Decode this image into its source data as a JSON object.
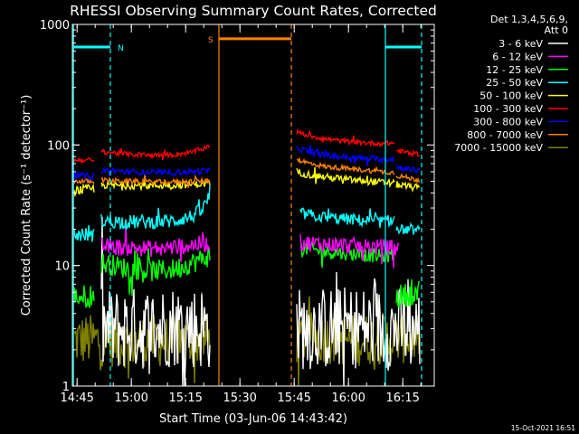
{
  "chart_data": {
    "type": "line",
    "title": "RHESSI Observing Summary Count Rates, Corrected",
    "xlabel": "Start Time (03-Jun-06 14:43:42)",
    "ylabel": "Corrected Count Rate (s⁻¹ detector⁻¹)",
    "x_unit": "minutes since 14:43:42",
    "xlim": [
      0,
      100
    ],
    "ylim": [
      1,
      1000
    ],
    "yscale": "log",
    "xticks": [
      {
        "x": 1.3,
        "label": "14:45"
      },
      {
        "x": 16.3,
        "label": "15:00"
      },
      {
        "x": 31.3,
        "label": "15:15"
      },
      {
        "x": 46.3,
        "label": "15:30"
      },
      {
        "x": 61.3,
        "label": "15:45"
      },
      {
        "x": 76.3,
        "label": "16:00"
      },
      {
        "x": 91.3,
        "label": "16:15"
      }
    ],
    "yticks": [
      {
        "y": 1,
        "label": "1"
      },
      {
        "y": 10,
        "label": "10"
      },
      {
        "y": 100,
        "label": "100"
      },
      {
        "y": 1000,
        "label": "1000"
      }
    ],
    "legend": {
      "title_lines": [
        "Det 1,3,4,5,6,9,",
        "Att 0"
      ],
      "placement": "right"
    },
    "markers": [
      {
        "label": "N",
        "color": "#00ffff",
        "x1": 0.3,
        "x2": 10.5,
        "bar_y": 650,
        "lines": [
          0.3,
          10.5
        ],
        "dash": [
          false,
          true
        ]
      },
      {
        "label": "S",
        "color": "#ff8000",
        "x1": 40.5,
        "x2": 60.5,
        "bar_y": 760,
        "lines": [
          40.5,
          60.5
        ],
        "dash": [
          false,
          true
        ]
      },
      {
        "label": "",
        "color": "#00ffff",
        "x1": 86.5,
        "x2": 96.5,
        "bar_y": 650,
        "lines": [
          86.5,
          96.5
        ],
        "dash": [
          false,
          true
        ]
      }
    ],
    "series": [
      {
        "name": "3 - 6 keV",
        "color": "#ffffff",
        "segments": [
          {
            "x": [
              8,
              15,
              22,
              28,
              33,
              38
            ],
            "y": [
              2.9,
              3.0,
              3.0,
              3.2,
              3.1,
              3.0
            ],
            "noise": 0.35
          },
          {
            "x": [
              62,
              70,
              78,
              85,
              90,
              96
            ],
            "y": [
              3.0,
              3.0,
              3.1,
              3.0,
              3.0,
              3.0
            ],
            "noise": 0.35
          }
        ]
      },
      {
        "name": "6 - 12 keV",
        "color": "#ff00ff",
        "segments": [
          {
            "x": [
              8,
              15,
              22,
              28,
              33,
              38
            ],
            "y": [
              14.5,
              14.0,
              13.8,
              14.2,
              14.8,
              15.3
            ],
            "noise": 0.07
          },
          {
            "x": [
              63,
              70,
              78,
              85,
              90
            ],
            "y": [
              15.5,
              15.0,
              14.5,
              14.2,
              14.0
            ],
            "noise": 0.07
          }
        ]
      },
      {
        "name": "12 - 25 keV",
        "color": "#00ff00",
        "segments": [
          {
            "x": [
              0.5,
              6
            ],
            "y": [
              5.5,
              5.6
            ],
            "noise": 0.1
          },
          {
            "x": [
              8,
              15,
              22,
              28,
              33,
              38
            ],
            "y": [
              10.5,
              9.5,
              9.0,
              9.3,
              10.5,
              12.0
            ],
            "noise": 0.09
          },
          {
            "x": [
              63,
              70,
              78,
              85,
              89
            ],
            "y": [
              14.0,
              13.0,
              12.5,
              12.0,
              12.2
            ],
            "noise": 0.06
          },
          {
            "x": [
              89.5,
              96
            ],
            "y": [
              5.5,
              6.0
            ],
            "noise": 0.1
          }
        ]
      },
      {
        "name": "25 - 50 keV",
        "color": "#00ffff",
        "segments": [
          {
            "x": [
              0.5,
              6
            ],
            "y": [
              18.0,
              18.0
            ],
            "noise": 0.06
          },
          {
            "x": [
              8,
              15,
              22,
              28,
              33,
              36,
              38
            ],
            "y": [
              23.5,
              23.0,
              23.0,
              23.5,
              25.5,
              29.0,
              38.0
            ],
            "noise": 0.06
          },
          {
            "x": [
              63,
              70,
              78,
              85,
              89
            ],
            "y": [
              27.0,
              25.0,
              24.0,
              23.0,
              24.0
            ],
            "noise": 0.05
          },
          {
            "x": [
              89.5,
              96
            ],
            "y": [
              20.0,
              19.5
            ],
            "noise": 0.04
          }
        ]
      },
      {
        "name": "50 - 100 keV",
        "color": "#ffff00",
        "segments": [
          {
            "x": [
              0.5,
              6
            ],
            "y": [
              42.0,
              43.0
            ],
            "noise": 0.04
          },
          {
            "x": [
              8,
              15,
              22,
              28,
              33,
              38
            ],
            "y": [
              46.5,
              46.0,
              46.0,
              46.5,
              47.0,
              48.0
            ],
            "noise": 0.03
          },
          {
            "x": [
              62,
              65,
              70,
              78,
              85,
              89
            ],
            "y": [
              60.0,
              57.0,
              54.0,
              51.0,
              49.0,
              48.0
            ],
            "noise": 0.03
          },
          {
            "x": [
              89.5,
              93,
              96
            ],
            "y": [
              47.0,
              45.0,
              44.0
            ],
            "noise": 0.03
          }
        ]
      },
      {
        "name": "100 - 300 keV",
        "color": "#ff0000",
        "segments": [
          {
            "x": [
              0.5,
              6
            ],
            "y": [
              75.0,
              75.0
            ],
            "noise": 0.02
          },
          {
            "x": [
              8,
              15,
              22,
              28,
              33,
              36,
              38
            ],
            "y": [
              88.0,
              84.0,
              82.0,
              83.0,
              87.0,
              93.0,
              100.0
            ],
            "noise": 0.02
          },
          {
            "x": [
              62,
              65,
              70,
              78,
              85,
              89
            ],
            "y": [
              128.0,
              120.0,
              112.0,
              105.0,
              103.0,
              104.0
            ],
            "noise": 0.02
          },
          {
            "x": [
              89.5,
              93,
              96
            ],
            "y": [
              90.0,
              86.0,
              84.0
            ],
            "noise": 0.02
          }
        ]
      },
      {
        "name": "300 - 800 keV",
        "color": "#0000ff",
        "segments": [
          {
            "x": [
              0.5,
              6
            ],
            "y": [
              56.0,
              55.0
            ],
            "noise": 0.025
          },
          {
            "x": [
              8,
              15,
              22,
              28,
              33,
              38
            ],
            "y": [
              62.0,
              60.0,
              59.0,
              59.0,
              60.0,
              61.0
            ],
            "noise": 0.025
          },
          {
            "x": [
              62,
              65,
              70,
              78,
              85,
              89
            ],
            "y": [
              95.0,
              88.0,
              82.0,
              78.0,
              76.0,
              77.0
            ],
            "noise": 0.025
          },
          {
            "x": [
              89.5,
              93,
              96
            ],
            "y": [
              66.0,
              63.0,
              61.0
            ],
            "noise": 0.025
          }
        ]
      },
      {
        "name": "800 - 7000 keV",
        "color": "#ff8000",
        "segments": [
          {
            "x": [
              0.5,
              6
            ],
            "y": [
              50.0,
              50.0
            ],
            "noise": 0.02
          },
          {
            "x": [
              8,
              15,
              22,
              28,
              33,
              38
            ],
            "y": [
              51.0,
              50.0,
              49.5,
              49.5,
              50.0,
              50.5
            ],
            "noise": 0.02
          },
          {
            "x": [
              62,
              65,
              70,
              78,
              85,
              89
            ],
            "y": [
              76.0,
              71.0,
              66.0,
              63.0,
              60.0,
              59.0
            ],
            "noise": 0.02
          },
          {
            "x": [
              89.5,
              93,
              96
            ],
            "y": [
              56.0,
              53.0,
              51.0
            ],
            "noise": 0.02
          }
        ]
      },
      {
        "name": "7000 - 15000 keV",
        "color": "#808000",
        "segments": [
          {
            "x": [
              0.5,
              8,
              15,
              22,
              28,
              33,
              38
            ],
            "y": [
              2.4,
              2.4,
              2.3,
              2.4,
              2.3,
              2.4,
              2.4
            ],
            "noise": 0.22
          },
          {
            "x": [
              62,
              70,
              78,
              85,
              90,
              96
            ],
            "y": [
              2.5,
              2.5,
              2.4,
              2.5,
              2.5,
              2.6
            ],
            "noise": 0.22
          }
        ]
      }
    ]
  },
  "footer_timestamp": "15-Oct-2021 16:51"
}
